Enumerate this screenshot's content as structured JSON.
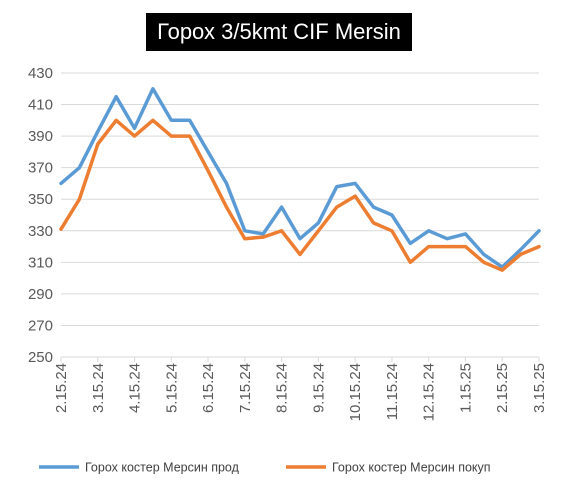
{
  "chart_data": {
    "type": "line",
    "title": "Горох 3/5kmt CIF Mersin",
    "xlabel": "",
    "ylabel": "",
    "ylim": [
      250,
      430
    ],
    "yticks": [
      250,
      270,
      290,
      310,
      330,
      350,
      370,
      390,
      410,
      430
    ],
    "grid": true,
    "legend_position": "bottom",
    "x": [
      "2.15.24",
      "3.1.24",
      "3.15.24",
      "4.1.24",
      "4.15.24",
      "5.1.24",
      "5.15.24",
      "6.1.24",
      "6.15.24",
      "7.1.24",
      "7.15.24",
      "8.1.24",
      "8.15.24",
      "9.1.24",
      "9.15.24",
      "10.1.24",
      "10.15.24",
      "11.1.24",
      "11.15.24",
      "12.1.24",
      "12.15.24",
      "1.1.25",
      "1.15.25",
      "2.1.25",
      "2.15.25",
      "3.1.25",
      "3.15.25"
    ],
    "xtick_labels": [
      "2.15.24",
      "3.15.24",
      "4.15.24",
      "5.15.24",
      "6.15.24",
      "7.15.24",
      "8.15.24",
      "9.15.24",
      "10.15.24",
      "11.15.24",
      "12.15.24",
      "1.15.25",
      "2.15.25",
      "3.15.25"
    ],
    "series": [
      {
        "name": "Горох костер Мерсин прод",
        "color": "#5B9BD5",
        "values": [
          360,
          370,
          393,
          415,
          395,
          420,
          400,
          400,
          380,
          360,
          330,
          328,
          345,
          325,
          335,
          358,
          360,
          345,
          340,
          322,
          330,
          325,
          328,
          315,
          307,
          318,
          330
        ]
      },
      {
        "name": "Горох костер Мерсин покуп",
        "color": "#ED7D31",
        "values": [
          331,
          350,
          385,
          400,
          390,
          400,
          390,
          390,
          368,
          345,
          325,
          326,
          330,
          315,
          330,
          345,
          352,
          335,
          330,
          310,
          320,
          320,
          320,
          310,
          305,
          315,
          320
        ]
      }
    ]
  }
}
